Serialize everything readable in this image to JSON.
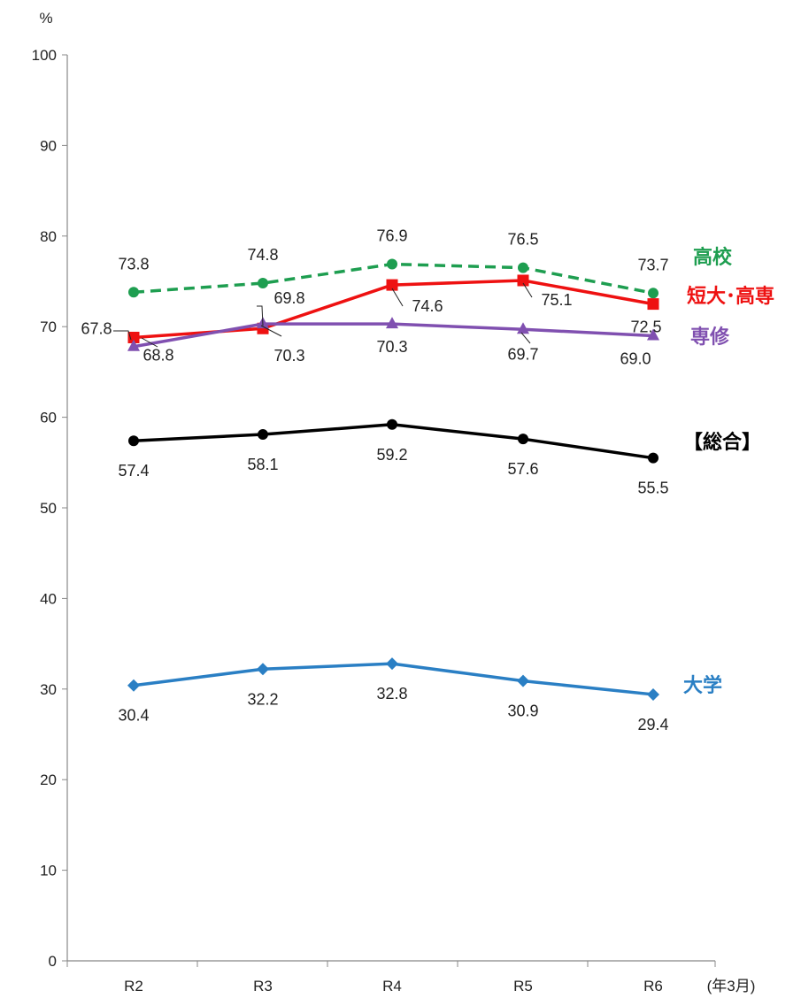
{
  "chart_data": {
    "type": "line",
    "y_unit": "%",
    "x_unit": "(年3月)",
    "categories": [
      "R2",
      "R3",
      "R4",
      "R5",
      "R6"
    ],
    "ylim": [
      0,
      100
    ],
    "yticks": [
      0,
      10,
      20,
      30,
      40,
      50,
      60,
      70,
      80,
      90,
      100
    ],
    "grid": false,
    "series": [
      {
        "name": "高校",
        "color": "#1e9e50",
        "dash": true,
        "marker": "circle",
        "values": [
          73.8,
          74.8,
          76.9,
          76.5,
          73.7
        ]
      },
      {
        "name": "短大･高専",
        "color": "#ee1111",
        "dash": false,
        "marker": "square",
        "values": [
          68.8,
          69.8,
          74.6,
          75.1,
          72.5
        ]
      },
      {
        "name": "専修",
        "color": "#8050b0",
        "dash": false,
        "marker": "triangle",
        "values": [
          67.8,
          70.3,
          70.3,
          69.7,
          69.0
        ]
      },
      {
        "name": "【総合】",
        "color": "#000000",
        "dash": false,
        "marker": "circle",
        "values": [
          57.4,
          58.1,
          59.2,
          57.6,
          55.5
        ]
      },
      {
        "name": "大学",
        "color": "#2a7fc4",
        "dash": false,
        "marker": "diamond",
        "values": [
          30.4,
          32.2,
          32.8,
          30.9,
          29.4
        ]
      }
    ]
  }
}
